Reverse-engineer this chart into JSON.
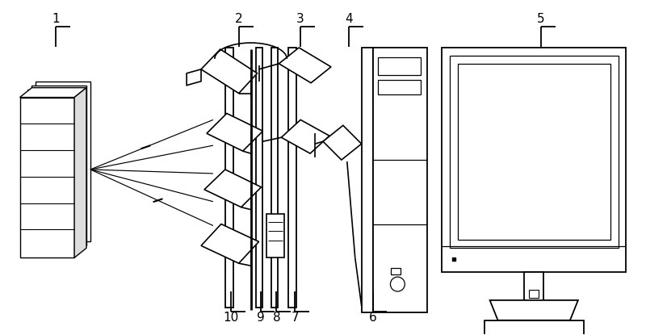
{
  "bg_color": "#ffffff",
  "line_color": "#000000",
  "fig_width": 8.0,
  "fig_height": 4.15,
  "dpi": 100
}
